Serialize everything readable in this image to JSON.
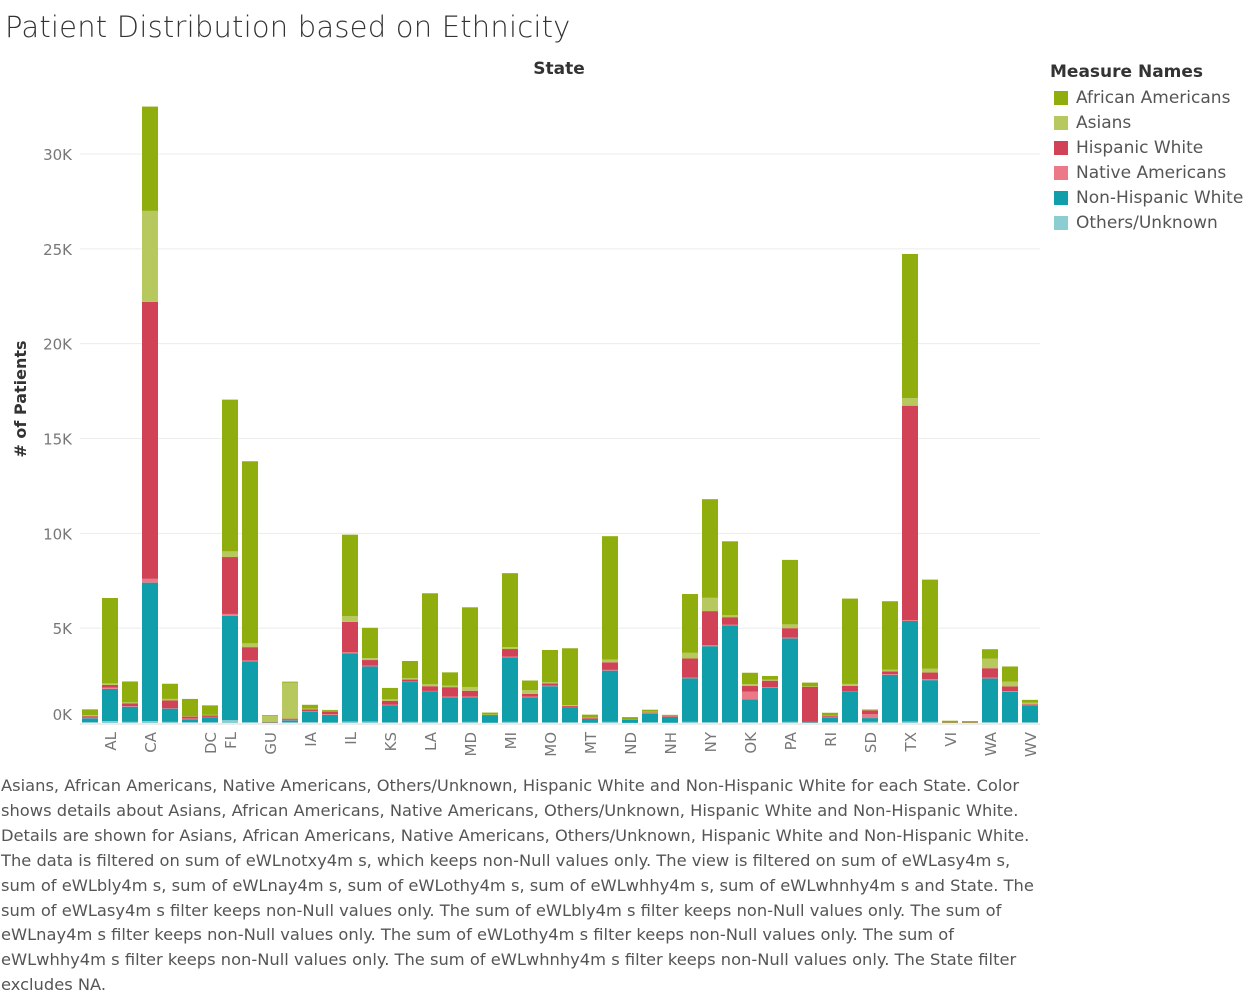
{
  "title": "Patient Distribution based on Ethnicity",
  "legend": {
    "title": "Measure Names",
    "items": [
      {
        "label": "African Americans",
        "color": "#8fad0c"
      },
      {
        "label": "Asians",
        "color": "#b6c85e"
      },
      {
        "label": "Hispanic White",
        "color": "#d24256"
      },
      {
        "label": "Native Americans",
        "color": "#ec7987"
      },
      {
        "label": "Non-Hispanic White",
        "color": "#119eab"
      },
      {
        "label": "Others/Unknown",
        "color": "#8ccdd2"
      }
    ]
  },
  "caption": "Asians, African Americans, Native Americans, Others/Unknown, Hispanic White and Non-Hispanic White for each State. Color shows details about Asians, African Americans, Native Americans, Others/Unknown, Hispanic White and Non-Hispanic White.  Details are shown for Asians, African Americans, Native Americans, Others/Unknown, Hispanic White and Non-Hispanic White. The data is filtered on sum of eWLnotxy4m s, which keeps non-Null values only. The view is filtered on sum of eWLasy4m s, sum of eWLbly4m s, sum of eWLnay4m s, sum of eWLothy4m s, sum of eWLwhhy4m s, sum of eWLwhnhy4m s and State. The sum of eWLasy4m s filter keeps non-Null values only. The sum of eWLbly4m s filter keeps non-Null values only. The sum of eWLnay4m s filter keeps non-Null values only. The sum of eWLothy4m s filter keeps non-Null values only. The sum of eWLwhhy4m s filter keeps non-Null values only. The sum of eWLwhnhy4m s filter keeps non-Null values only. The State filter excludes NA.",
  "chart_data": {
    "type": "bar",
    "stacked": true,
    "xlabel": "State",
    "ylabel": "# of Patients",
    "ylim": [
      -1000,
      33200
    ],
    "yticks": [
      0,
      5000,
      10000,
      15000,
      20000,
      25000,
      30000
    ],
    "ytick_labels": [
      "0K",
      "5K",
      "10K",
      "15K",
      "20K",
      "25K",
      "30K"
    ],
    "gridlines": true,
    "legend_position": "right",
    "x_tick_labels": [
      "AL",
      "CA",
      "DC",
      "FL",
      "GU",
      "IA",
      "IL",
      "KS",
      "LA",
      "MD",
      "MI",
      "MO",
      "MT",
      "ND",
      "NH",
      "NY",
      "OK",
      "PA",
      "RI",
      "SD",
      "TX",
      "VI",
      "WA",
      "WV"
    ],
    "series_order": [
      "Others/Unknown",
      "Non-Hispanic White",
      "Native Americans",
      "Hispanic White",
      "Asians",
      "African Americans"
    ],
    "bars": [
      {
        "vals": [
          50,
          200,
          30,
          80,
          60,
          300
        ]
      },
      {
        "state": "AL",
        "vals": [
          100,
          1700,
          60,
          150,
          80,
          4500
        ]
      },
      {
        "vals": [
          60,
          800,
          30,
          150,
          50,
          1100
        ]
      },
      {
        "state": "CA",
        "vals": [
          100,
          7300,
          200,
          14600,
          4800,
          5500
        ]
      },
      {
        "vals": [
          60,
          700,
          30,
          400,
          80,
          800
        ]
      },
      {
        "vals": [
          50,
          150,
          40,
          100,
          30,
          900
        ]
      },
      {
        "state": "DC",
        "vals": [
          40,
          250,
          30,
          80,
          30,
          500
        ]
      },
      {
        "state": "FL",
        "vals": [
          150,
          5500,
          100,
          3000,
          300,
          8000
        ]
      },
      {
        "vals": [
          50,
          3200,
          50,
          700,
          200,
          9600
        ]
      },
      {
        "state": "GU",
        "vals": [
          10,
          10,
          10,
          10,
          350,
          30
        ]
      },
      {
        "vals": [
          40,
          100,
          30,
          60,
          1900,
          50
        ]
      },
      {
        "state": "IA",
        "vals": [
          50,
          550,
          30,
          80,
          50,
          200
        ]
      },
      {
        "vals": [
          30,
          400,
          30,
          150,
          30,
          50
        ]
      },
      {
        "state": "IL",
        "vals": [
          80,
          3600,
          50,
          1600,
          300,
          4300
        ]
      },
      {
        "vals": [
          80,
          2900,
          40,
          300,
          100,
          1600
        ]
      },
      {
        "state": "KS",
        "vals": [
          40,
          900,
          30,
          200,
          80,
          600
        ]
      },
      {
        "vals": [
          60,
          2100,
          30,
          100,
          80,
          900
        ]
      },
      {
        "state": "LA",
        "vals": [
          60,
          1600,
          30,
          250,
          100,
          4800
        ]
      },
      {
        "vals": [
          50,
          1300,
          40,
          500,
          80,
          700
        ]
      },
      {
        "state": "MD",
        "vals": [
          60,
          1300,
          40,
          300,
          200,
          4200
        ]
      },
      {
        "vals": [
          20,
          350,
          10,
          40,
          30,
          100
        ]
      },
      {
        "state": "MI",
        "vals": [
          60,
          3400,
          40,
          400,
          100,
          3900
        ]
      },
      {
        "vals": [
          50,
          1300,
          40,
          150,
          200,
          500
        ]
      },
      {
        "state": "MO",
        "vals": [
          40,
          1900,
          30,
          120,
          60,
          1700
        ]
      },
      {
        "vals": [
          40,
          800,
          20,
          40,
          40,
          3000
        ]
      },
      {
        "state": "MT",
        "vals": [
          20,
          200,
          10,
          30,
          30,
          150
        ]
      },
      {
        "vals": [
          60,
          2700,
          40,
          400,
          150,
          6500
        ]
      },
      {
        "state": "ND",
        "vals": [
          10,
          150,
          10,
          20,
          20,
          100
        ]
      },
      {
        "vals": [
          40,
          450,
          20,
          40,
          50,
          100
        ]
      },
      {
        "state": "NH",
        "vals": [
          20,
          300,
          10,
          30,
          20,
          50
        ]
      },
      {
        "vals": [
          60,
          2300,
          40,
          1000,
          300,
          3100
        ]
      },
      {
        "state": "NY",
        "vals": [
          50,
          4000,
          50,
          1800,
          700,
          5200
        ]
      },
      {
        "vals": [
          50,
          5100,
          30,
          400,
          100,
          3900
        ]
      },
      {
        "state": "OK",
        "vals": [
          50,
          1200,
          400,
          300,
          100,
          600
        ]
      },
      {
        "vals": [
          50,
          1800,
          30,
          350,
          50,
          200
        ]
      },
      {
        "state": "PA",
        "vals": [
          60,
          4400,
          40,
          500,
          200,
          3400
        ]
      },
      {
        "vals": [
          20,
          20,
          20,
          1850,
          20,
          200
        ]
      },
      {
        "state": "RI",
        "vals": [
          50,
          250,
          30,
          60,
          30,
          120
        ]
      },
      {
        "vals": [
          40,
          1600,
          20,
          300,
          100,
          4500
        ]
      },
      {
        "state": "SD",
        "vals": [
          60,
          200,
          200,
          200,
          20,
          20
        ]
      },
      {
        "vals": [
          40,
          2500,
          30,
          150,
          100,
          3600
        ]
      },
      {
        "state": "TX",
        "vals": [
          80,
          5300,
          50,
          11300,
          400,
          7600
        ]
      },
      {
        "vals": [
          60,
          2200,
          50,
          350,
          200,
          4700
        ]
      },
      {
        "state": "VI",
        "vals": [
          5,
          5,
          5,
          5,
          20,
          80
        ]
      },
      {
        "vals": [
          5,
          5,
          5,
          5,
          20,
          60
        ]
      },
      {
        "state": "WA",
        "vals": [
          50,
          2300,
          40,
          500,
          500,
          500
        ]
      },
      {
        "vals": [
          50,
          1600,
          30,
          250,
          250,
          800
        ]
      },
      {
        "state": "WV",
        "vals": [
          40,
          900,
          20,
          30,
          80,
          150
        ]
      }
    ]
  }
}
